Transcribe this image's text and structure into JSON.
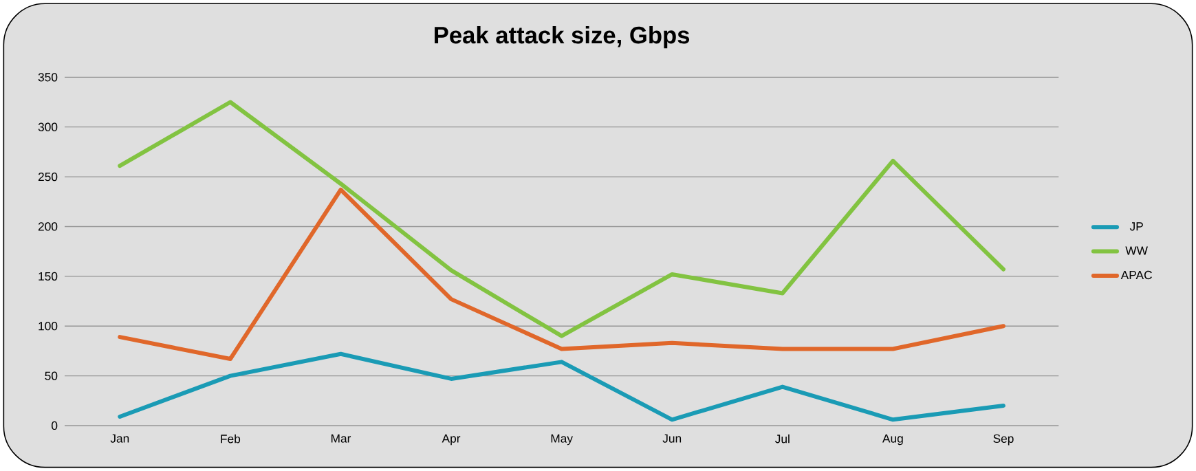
{
  "chart_data": {
    "type": "line",
    "title": "Peak attack size, Gbps",
    "categories": [
      "Jan",
      "Feb",
      "Mar",
      "Apr",
      "May",
      "Jun",
      "Jul",
      "Aug",
      "Sep"
    ],
    "series": [
      {
        "name": "JP",
        "color": "#1a9bb5",
        "values": [
          9,
          50,
          72,
          47,
          64,
          6,
          39,
          6,
          20
        ]
      },
      {
        "name": "WW",
        "color": "#82c341",
        "values": [
          261,
          325,
          243,
          156,
          90,
          152,
          133,
          266,
          157
        ]
      },
      {
        "name": "APAC",
        "color": "#e0672a",
        "values": [
          89,
          67,
          237,
          127,
          77,
          83,
          77,
          77,
          100
        ]
      }
    ],
    "ylim": [
      0,
      350
    ],
    "yticks": [
      0,
      50,
      100,
      150,
      200,
      250,
      300,
      350
    ],
    "grid": "y",
    "legend": "right",
    "marker": "none",
    "line_style": "solid"
  }
}
